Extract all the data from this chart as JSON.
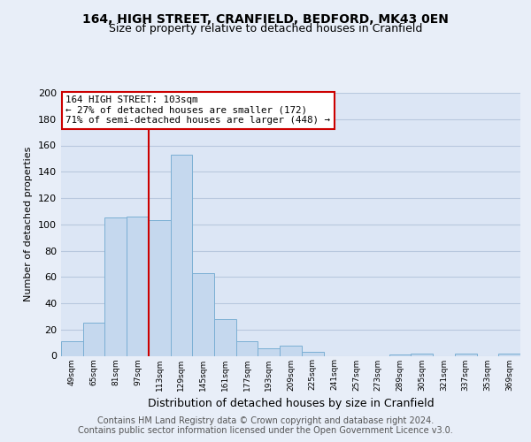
{
  "title": "164, HIGH STREET, CRANFIELD, BEDFORD, MK43 0EN",
  "subtitle": "Size of property relative to detached houses in Cranfield",
  "xlabel": "Distribution of detached houses by size in Cranfield",
  "ylabel": "Number of detached properties",
  "bar_color": "#c5d8ee",
  "bar_edge_color": "#7bafd4",
  "background_color": "#e8eef8",
  "plot_bg_color": "#dce6f5",
  "grid_color": "#b8c8de",
  "bin_labels": [
    "49sqm",
    "65sqm",
    "81sqm",
    "97sqm",
    "113sqm",
    "129sqm",
    "145sqm",
    "161sqm",
    "177sqm",
    "193sqm",
    "209sqm",
    "225sqm",
    "241sqm",
    "257sqm",
    "273sqm",
    "289sqm",
    "305sqm",
    "321sqm",
    "337sqm",
    "353sqm",
    "369sqm"
  ],
  "bar_values": [
    11,
    25,
    105,
    106,
    103,
    153,
    63,
    28,
    11,
    6,
    8,
    3,
    0,
    0,
    0,
    1,
    2,
    0,
    2,
    0,
    2
  ],
  "vline_x_index": 3.5,
  "vline_color": "#cc0000",
  "ylim": [
    0,
    200
  ],
  "yticks": [
    0,
    20,
    40,
    60,
    80,
    100,
    120,
    140,
    160,
    180,
    200
  ],
  "annotation_line1": "164 HIGH STREET: 103sqm",
  "annotation_line2": "← 27% of detached houses are smaller (172)",
  "annotation_line3": "71% of semi-detached houses are larger (448) →",
  "annotation_box_color": "#ffffff",
  "annotation_box_edge": "#cc0000",
  "footer_line1": "Contains HM Land Registry data © Crown copyright and database right 2024.",
  "footer_line2": "Contains public sector information licensed under the Open Government Licence v3.0.",
  "title_fontsize": 10,
  "subtitle_fontsize": 9,
  "xlabel_fontsize": 9,
  "ylabel_fontsize": 8,
  "footer_fontsize": 7
}
